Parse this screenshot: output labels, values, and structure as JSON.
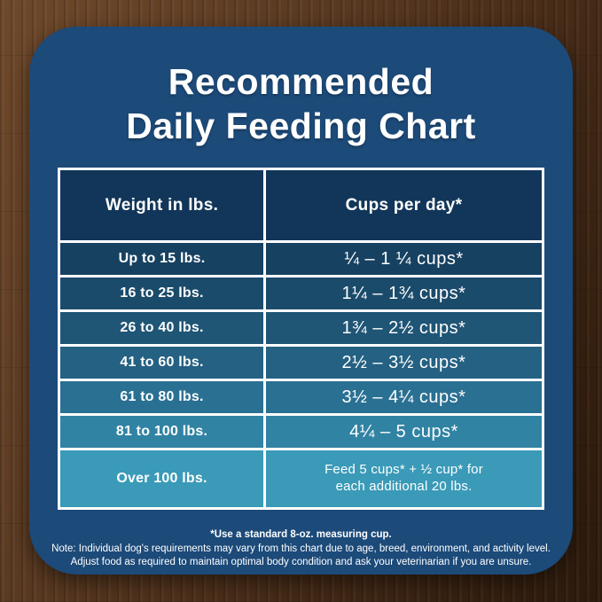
{
  "title": {
    "line1": "Recommended",
    "line2": "Daily Feeding Chart"
  },
  "chart_data": {
    "type": "table",
    "title": "Recommended Daily Feeding Chart",
    "columns": [
      "Weight in lbs.",
      "Cups per day*"
    ],
    "rows": [
      [
        "Up to 15 lbs.",
        "¼ – 1 ¼ cups*"
      ],
      [
        "16 to 25 lbs.",
        "1¼ – 1¾  cups*"
      ],
      [
        "26 to 40 lbs.",
        "1¾ – 2½ cups*"
      ],
      [
        "41 to 60 lbs.",
        "2½ – 3½ cups*"
      ],
      [
        "61 to 80 lbs.",
        "3½ – 4¼ cups*"
      ],
      [
        "81 to 100 lbs.",
        "4¼ – 5 cups*"
      ],
      [
        "Over 100 lbs.",
        "Feed 5 cups* + ½ cup* for each additional 20 lbs."
      ]
    ],
    "last_row_display_lines": [
      "Feed 5 cups* + ½ cup* for",
      "each additional 20 lbs."
    ]
  },
  "footnotes": {
    "line1": "*Use a standard 8-oz. measuring cup.",
    "line2": "Note: Individual dog's requirements may vary from this chart due to age, breed, environment, and activity level.",
    "line3": "Adjust food as required to maintain optimal body condition and ask your veterinarian if you are unsure."
  },
  "colors": {
    "card": "#1c4a79",
    "header_cell": "#123659",
    "row_backgrounds": [
      "#174161",
      "#1b4b6b",
      "#1f5575",
      "#246182",
      "#2a7092",
      "#3183a3",
      "#3a9ab8"
    ],
    "border": "#ffffff",
    "text": "#ffffff",
    "wood_base": "#573823"
  }
}
